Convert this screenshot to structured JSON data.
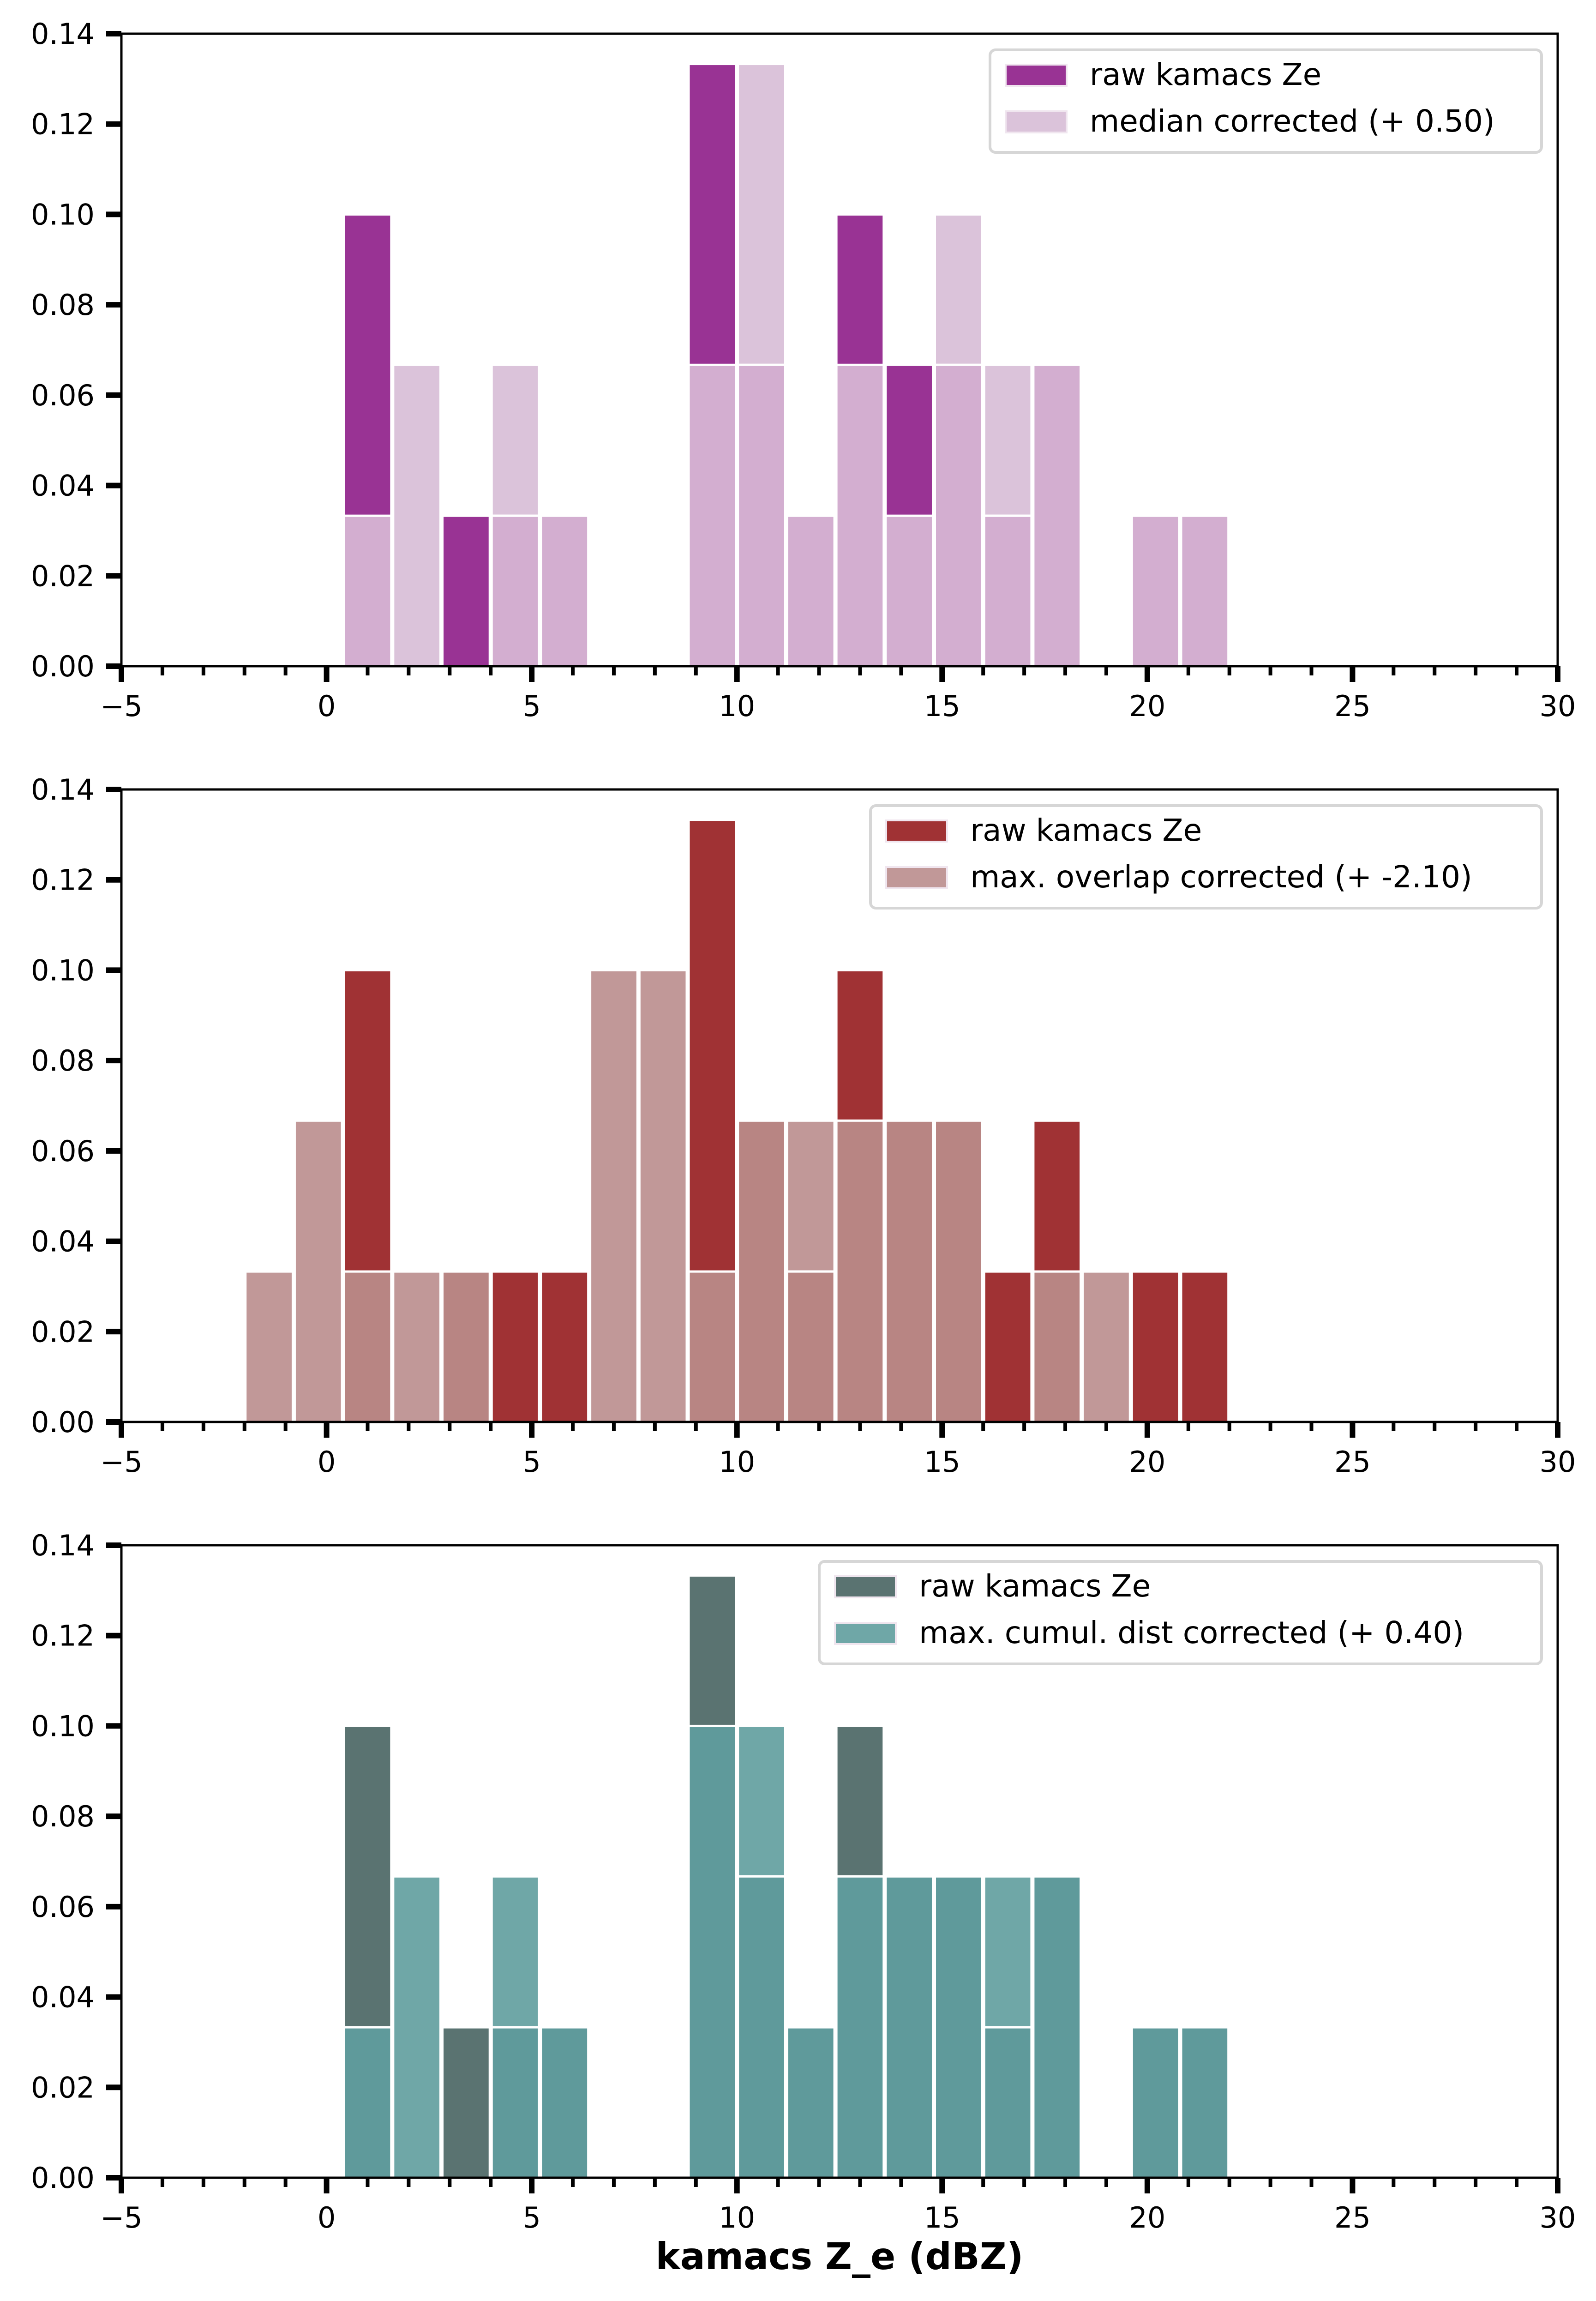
{
  "chart_data": [
    {
      "type": "bar",
      "subtype": "overlaid-histogram",
      "title": "",
      "xlabel": "",
      "ylabel": "",
      "xlim": [
        -5,
        30
      ],
      "ylim": [
        0,
        0.14
      ],
      "x_major_ticks": [
        -5,
        0,
        5,
        10,
        15,
        20,
        25,
        30
      ],
      "x_tick_labels": [
        "−5",
        "0",
        "5",
        "10",
        "15",
        "20",
        "25",
        "30"
      ],
      "y_ticks": [
        0.0,
        0.02,
        0.04,
        0.06,
        0.08,
        0.1,
        0.12,
        0.14
      ],
      "y_tick_labels": [
        "0.00",
        "0.02",
        "0.04",
        "0.06",
        "0.08",
        "0.10",
        "0.12",
        "0.14"
      ],
      "bin_edges": [
        -2.0,
        -0.8,
        0.4,
        1.6,
        2.8,
        4.0,
        5.2,
        6.4,
        7.6,
        8.8,
        10.0,
        11.2,
        12.4,
        13.6,
        14.8,
        16.0,
        17.2,
        18.4,
        19.6,
        20.8,
        22.0
      ],
      "legend_position": "top-right",
      "series": [
        {
          "name": "raw kamacs Ze",
          "color": "#993394",
          "alpha": 1.0,
          "values": [
            0,
            0,
            0.1,
            0,
            0.0333,
            0.0333,
            0.0333,
            0,
            0,
            0.1333,
            0.0667,
            0.0333,
            0.1,
            0.0667,
            0.0667,
            0.0333,
            0.0667,
            0,
            0.0333,
            0.0333
          ]
        },
        {
          "name": "median corrected (+ 0.50)",
          "color": "#dbc3da",
          "overlap_color": "#d3aed0",
          "values": [
            0,
            0,
            0.0333,
            0.0667,
            0,
            0.0667,
            0.0333,
            0,
            0,
            0.0667,
            0.1333,
            0.0333,
            0.0667,
            0.0333,
            0.1,
            0.0667,
            0.0667,
            0,
            0.0333,
            0.0333
          ]
        }
      ]
    },
    {
      "type": "bar",
      "subtype": "overlaid-histogram",
      "title": "",
      "xlabel": "",
      "ylabel": "",
      "xlim": [
        -5,
        30
      ],
      "ylim": [
        0,
        0.14
      ],
      "x_major_ticks": [
        -5,
        0,
        5,
        10,
        15,
        20,
        25,
        30
      ],
      "x_tick_labels": [
        "−5",
        "0",
        "5",
        "10",
        "15",
        "20",
        "25",
        "30"
      ],
      "y_ticks": [
        0.0,
        0.02,
        0.04,
        0.06,
        0.08,
        0.1,
        0.12,
        0.14
      ],
      "y_tick_labels": [
        "0.00",
        "0.02",
        "0.04",
        "0.06",
        "0.08",
        "0.10",
        "0.12",
        "0.14"
      ],
      "bin_edges": [
        -2.0,
        -0.8,
        0.4,
        1.6,
        2.8,
        4.0,
        5.2,
        6.4,
        7.6,
        8.8,
        10.0,
        11.2,
        12.4,
        13.6,
        14.8,
        16.0,
        17.2,
        18.4,
        19.6,
        20.8,
        22.0
      ],
      "legend_position": "top-right",
      "series": [
        {
          "name": "raw kamacs Ze",
          "color": "#a03234",
          "alpha": 1.0,
          "values": [
            0,
            0,
            0.1,
            0,
            0.0333,
            0.0333,
            0.0333,
            0,
            0,
            0.1333,
            0.0667,
            0.0333,
            0.1,
            0.0667,
            0.0667,
            0.0333,
            0.0667,
            0,
            0.0333,
            0.0333
          ]
        },
        {
          "name": "max. overlap corrected (+ -2.10)",
          "color": "#c19898",
          "overlap_color": "#b88583",
          "values": [
            0.0333,
            0.0667,
            0.0333,
            0.0333,
            0.0333,
            0,
            0,
            0.1,
            0.1,
            0.0333,
            0.0667,
            0.0667,
            0.0667,
            0.0667,
            0.0667,
            0,
            0.0333,
            0.0333,
            0,
            0
          ]
        }
      ]
    },
    {
      "type": "bar",
      "subtype": "overlaid-histogram",
      "title": "",
      "xlabel": "kamacs Z_e (dBZ)",
      "ylabel": "",
      "xlim": [
        -5,
        30
      ],
      "ylim": [
        0,
        0.14
      ],
      "x_major_ticks": [
        -5,
        0,
        5,
        10,
        15,
        20,
        25,
        30
      ],
      "x_tick_labels": [
        "−5",
        "0",
        "5",
        "10",
        "15",
        "20",
        "25",
        "30"
      ],
      "y_ticks": [
        0.0,
        0.02,
        0.04,
        0.06,
        0.08,
        0.1,
        0.12,
        0.14
      ],
      "y_tick_labels": [
        "0.00",
        "0.02",
        "0.04",
        "0.06",
        "0.08",
        "0.10",
        "0.12",
        "0.14"
      ],
      "bin_edges": [
        -2.0,
        -0.8,
        0.4,
        1.6,
        2.8,
        4.0,
        5.2,
        6.4,
        7.6,
        8.8,
        10.0,
        11.2,
        12.4,
        13.6,
        14.8,
        16.0,
        17.2,
        18.4,
        19.6,
        20.8,
        22.0
      ],
      "legend_position": "top-right",
      "series": [
        {
          "name": "raw kamacs Ze",
          "color": "#5a7371",
          "alpha": 1.0,
          "values": [
            0,
            0,
            0.1,
            0,
            0.0333,
            0.0333,
            0.0333,
            0,
            0,
            0.1333,
            0.0667,
            0.0333,
            0.1,
            0.0667,
            0.0667,
            0.0333,
            0.0667,
            0,
            0.0333,
            0.0333
          ]
        },
        {
          "name": "max. cumul. dist corrected (+ 0.40)",
          "color": "#6fa7a7",
          "overlap_color": "#5f9a9b",
          "values": [
            0,
            0,
            0.0333,
            0.0667,
            0,
            0.0667,
            0.0333,
            0,
            0,
            0.1,
            0.1,
            0.0333,
            0.0667,
            0.0667,
            0.0667,
            0.0667,
            0.0667,
            0,
            0.0333,
            0.0333
          ]
        }
      ]
    }
  ]
}
